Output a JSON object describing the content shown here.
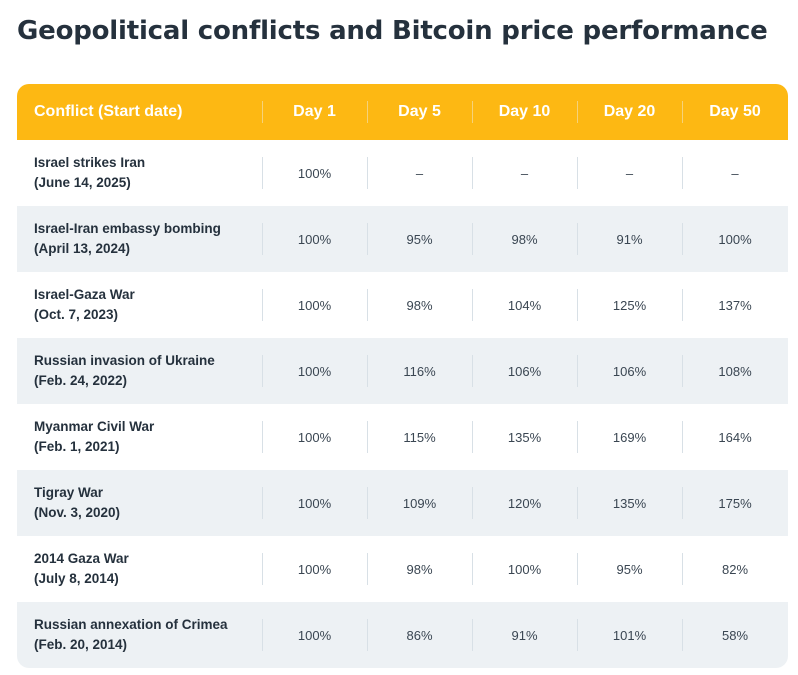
{
  "title": "Geopolitical conflicts and Bitcoin price performance",
  "chart_data": {
    "type": "table",
    "title": "Geopolitical conflicts and Bitcoin price performance",
    "columns": [
      "Conflict (Start date)",
      "Day 1",
      "Day 5",
      "Day 10",
      "Day 20",
      "Day 50"
    ],
    "rows": [
      {
        "conflict": "Israel strikes Iran",
        "start_date": "(June 14, 2025)",
        "values": [
          "100%",
          "–",
          "–",
          "–",
          "–"
        ]
      },
      {
        "conflict": "Israel-Iran embassy bombing",
        "start_date": "(April 13, 2024)",
        "values": [
          "100%",
          "95%",
          "98%",
          "91%",
          "100%"
        ]
      },
      {
        "conflict": "Israel-Gaza War",
        "start_date": "(Oct. 7, 2023)",
        "values": [
          "100%",
          "98%",
          "104%",
          "125%",
          "137%"
        ]
      },
      {
        "conflict": "Russian invasion of Ukraine",
        "start_date": "(Feb. 24, 2022)",
        "values": [
          "100%",
          "116%",
          "106%",
          "106%",
          "108%"
        ]
      },
      {
        "conflict": "Myanmar Civil War",
        "start_date": "(Feb. 1, 2021)",
        "values": [
          "100%",
          "115%",
          "135%",
          "169%",
          "164%"
        ]
      },
      {
        "conflict": "Tigray War",
        "start_date": "(Nov. 3, 2020)",
        "values": [
          "100%",
          "109%",
          "120%",
          "135%",
          "175%"
        ]
      },
      {
        "conflict": "2014 Gaza War",
        "start_date": "(July 8, 2014)",
        "values": [
          "100%",
          "98%",
          "100%",
          "95%",
          "82%"
        ]
      },
      {
        "conflict": "Russian annexation of Crimea",
        "start_date": "(Feb. 20, 2014)",
        "values": [
          "100%",
          "86%",
          "91%",
          "101%",
          "58%"
        ]
      }
    ]
  },
  "colors": {
    "header_bg": "#fdb813",
    "header_text": "#ffffff",
    "alt_row_bg": "#edf1f4",
    "title_text": "#25313d"
  }
}
